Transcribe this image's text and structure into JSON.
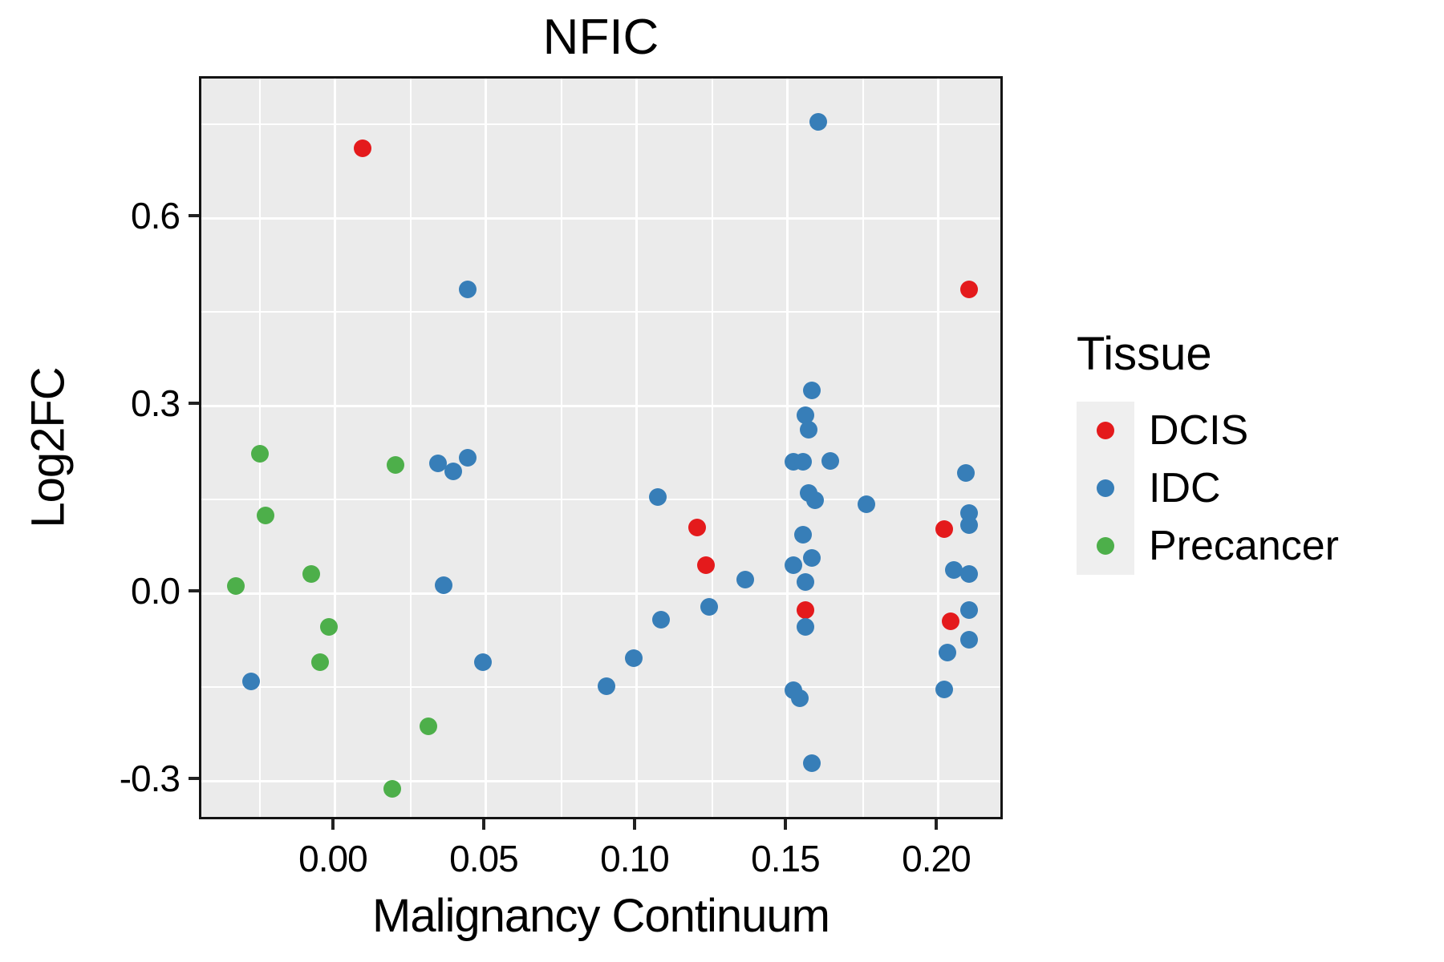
{
  "title": "NFIC",
  "axes": {
    "x": {
      "label": "Malignancy Continuum",
      "domain": [
        -0.0444,
        0.2221
      ],
      "ticks": [
        {
          "value": 0.0,
          "label": "0.00"
        },
        {
          "value": 0.05,
          "label": "0.05"
        },
        {
          "value": 0.1,
          "label": "0.10"
        },
        {
          "value": 0.15,
          "label": "0.15"
        },
        {
          "value": 0.2,
          "label": "0.20"
        }
      ],
      "minor": [
        -0.025,
        0.025,
        0.075,
        0.125,
        0.175
      ]
    },
    "y": {
      "label": "Log2FC",
      "domain": [
        -0.365,
        0.823
      ],
      "ticks": [
        {
          "value": 0.6,
          "label": "0.6"
        },
        {
          "value": 0.3,
          "label": "0.3"
        },
        {
          "value": 0.0,
          "label": "0.0"
        },
        {
          "value": -0.3,
          "label": "-0.3"
        }
      ],
      "minor": [
        0.75,
        0.45,
        0.15,
        -0.15
      ]
    }
  },
  "legend": {
    "title": "Tissue",
    "items": [
      {
        "label": "DCIS",
        "color": "#E41A1C"
      },
      {
        "label": "IDC",
        "color": "#377EB8"
      },
      {
        "label": "Precancer",
        "color": "#4DAF4A"
      }
    ]
  },
  "style_colors": {
    "panel_background": "#EBEBEB",
    "gridline": "#FFFFFF",
    "legend_key_background": "#EFEFEF",
    "dcis": "#E41A1C",
    "idc": "#377EB8",
    "precancer": "#4DAF4A"
  },
  "chart_data": {
    "type": "scatter",
    "title": "NFIC",
    "xlabel": "Malignancy Continuum",
    "ylabel": "Log2FC",
    "xlim": [
      -0.0444,
      0.2221
    ],
    "ylim": [
      -0.365,
      0.823
    ],
    "grid": true,
    "legend_position": "right",
    "series": [
      {
        "name": "DCIS",
        "color": "#E41A1C",
        "points": [
          [
            0.009,
            0.711
          ],
          [
            0.21,
            0.486
          ],
          [
            0.12,
            0.105
          ],
          [
            0.123,
            0.045
          ],
          [
            0.156,
            -0.027
          ],
          [
            0.202,
            0.103
          ],
          [
            0.204,
            -0.045
          ]
        ]
      },
      {
        "name": "IDC",
        "color": "#377EB8",
        "points": [
          [
            0.044,
            0.486
          ],
          [
            0.16,
            0.754
          ],
          [
            0.158,
            0.324
          ],
          [
            0.156,
            0.285
          ],
          [
            0.157,
            0.262
          ],
          [
            0.152,
            0.211
          ],
          [
            0.155,
            0.21
          ],
          [
            0.164,
            0.212
          ],
          [
            0.107,
            0.154
          ],
          [
            0.157,
            0.16
          ],
          [
            0.159,
            0.149
          ],
          [
            0.176,
            0.142
          ],
          [
            0.209,
            0.193
          ],
          [
            0.21,
            0.128
          ],
          [
            0.21,
            0.109
          ],
          [
            0.155,
            0.094
          ],
          [
            0.136,
            0.022
          ],
          [
            0.152,
            0.045
          ],
          [
            0.158,
            0.056
          ],
          [
            0.156,
            0.018
          ],
          [
            0.205,
            0.038
          ],
          [
            0.21,
            0.031
          ],
          [
            0.124,
            -0.021
          ],
          [
            0.108,
            -0.042
          ],
          [
            0.156,
            -0.053
          ],
          [
            0.21,
            -0.027
          ],
          [
            0.21,
            -0.074
          ],
          [
            0.203,
            -0.094
          ],
          [
            0.099,
            -0.103
          ],
          [
            0.09,
            -0.149
          ],
          [
            0.152,
            -0.155
          ],
          [
            0.154,
            -0.168
          ],
          [
            0.202,
            -0.154
          ],
          [
            0.158,
            -0.271
          ],
          [
            0.034,
            0.208
          ],
          [
            0.039,
            0.195
          ],
          [
            0.044,
            0.217
          ],
          [
            0.036,
            0.013
          ],
          [
            -0.028,
            -0.141
          ],
          [
            0.049,
            -0.11
          ]
        ]
      },
      {
        "name": "Precancer",
        "color": "#4DAF4A",
        "points": [
          [
            -0.025,
            0.223
          ],
          [
            0.02,
            0.205
          ],
          [
            -0.023,
            0.124
          ],
          [
            -0.008,
            0.031
          ],
          [
            -0.033,
            0.012
          ],
          [
            -0.002,
            -0.053
          ],
          [
            -0.005,
            -0.11
          ],
          [
            0.031,
            -0.212
          ],
          [
            0.019,
            -0.312
          ]
        ]
      }
    ]
  }
}
